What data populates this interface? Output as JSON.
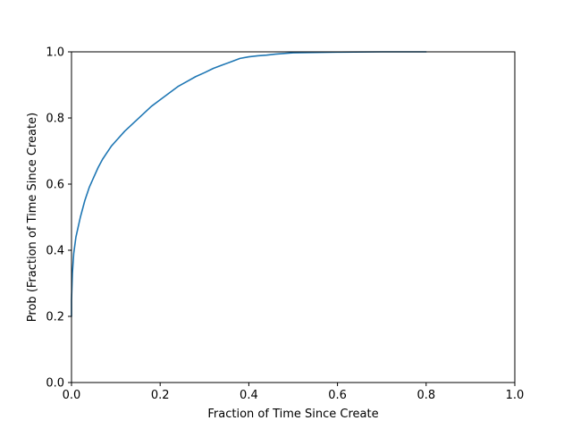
{
  "chart_data": {
    "type": "line",
    "title": "",
    "xlabel": "Fraction of Time Since Create",
    "ylabel": "Prob (Fraction of Time Since Create)",
    "xlim": [
      0.0,
      1.0
    ],
    "ylim": [
      0.0,
      1.0
    ],
    "x_ticks": [
      "0.0",
      "0.2",
      "0.4",
      "0.6",
      "0.8",
      "1.0"
    ],
    "y_ticks": [
      "0.0",
      "0.2",
      "0.4",
      "0.6",
      "0.8",
      "1.0"
    ],
    "grid": false,
    "legend": "none",
    "series": [
      {
        "color": "#1f77b4",
        "x": [
          0.0,
          0.0,
          0.002,
          0.005,
          0.01,
          0.015,
          0.02,
          0.03,
          0.04,
          0.05,
          0.06,
          0.07,
          0.08,
          0.09,
          0.1,
          0.12,
          0.14,
          0.16,
          0.18,
          0.2,
          0.22,
          0.24,
          0.26,
          0.28,
          0.3,
          0.32,
          0.34,
          0.36,
          0.38,
          0.4,
          0.42,
          0.44,
          0.46,
          0.48,
          0.5,
          0.55,
          0.6,
          0.7,
          0.8
        ],
        "y": [
          0.2,
          0.25,
          0.33,
          0.39,
          0.44,
          0.47,
          0.5,
          0.55,
          0.59,
          0.62,
          0.65,
          0.675,
          0.695,
          0.715,
          0.73,
          0.76,
          0.785,
          0.81,
          0.835,
          0.855,
          0.875,
          0.895,
          0.91,
          0.925,
          0.937,
          0.95,
          0.96,
          0.97,
          0.98,
          0.985,
          0.988,
          0.99,
          0.993,
          0.995,
          0.997,
          0.998,
          0.999,
          1.0,
          1.0
        ]
      }
    ]
  }
}
